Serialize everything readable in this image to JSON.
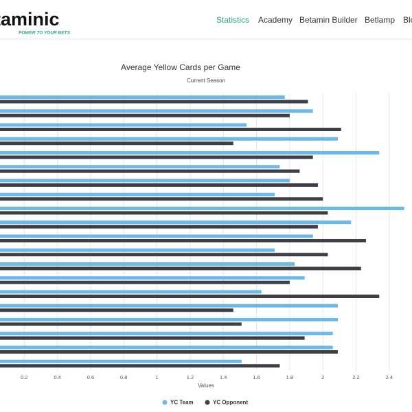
{
  "header": {
    "logo": "taminic",
    "tagline": "POWER TO YOUR BETS",
    "nav": [
      "Statistics",
      "Academy",
      "Betamin Builder",
      "Betlamp",
      "Blo"
    ],
    "active": 0
  },
  "chart_data": {
    "type": "bar",
    "orientation": "horizontal",
    "title": "Average Yellow Cards per Game",
    "subtitle": "Current Season",
    "x_label": "Values",
    "categories": [
      null,
      null,
      null,
      null,
      null,
      null,
      null,
      null,
      null,
      null,
      null,
      null,
      null,
      null,
      null,
      null,
      null,
      null,
      null,
      null
    ],
    "series": [
      {
        "name": "YC Team",
        "color": "#6bb9e8",
        "values": [
          1.77,
          1.94,
          1.54,
          2.09,
          2.34,
          1.74,
          1.8,
          1.71,
          2.49,
          2.17,
          1.94,
          1.71,
          1.83,
          1.89,
          1.63,
          2.09,
          2.09,
          2.06,
          2.06,
          1.51
        ]
      },
      {
        "name": "YC Opponent",
        "color": "#3d3f45",
        "values": [
          1.91,
          1.8,
          2.11,
          1.46,
          1.94,
          1.86,
          1.97,
          2.0,
          2.03,
          1.97,
          2.26,
          2.03,
          2.23,
          1.8,
          2.34,
          1.46,
          1.51,
          1.89,
          2.09,
          1.74
        ]
      }
    ],
    "xlim": [
      0,
      2.5
    ],
    "xticks": [
      0.2,
      0.4,
      0.6,
      0.8,
      {
        "value": 1,
        "label": "1"
      },
      1.2,
      1.4,
      1.6,
      1.8,
      {
        "value": 2,
        "label": "2"
      },
      2.2,
      2.4
    ],
    "grid": true,
    "legend": "bottom"
  }
}
